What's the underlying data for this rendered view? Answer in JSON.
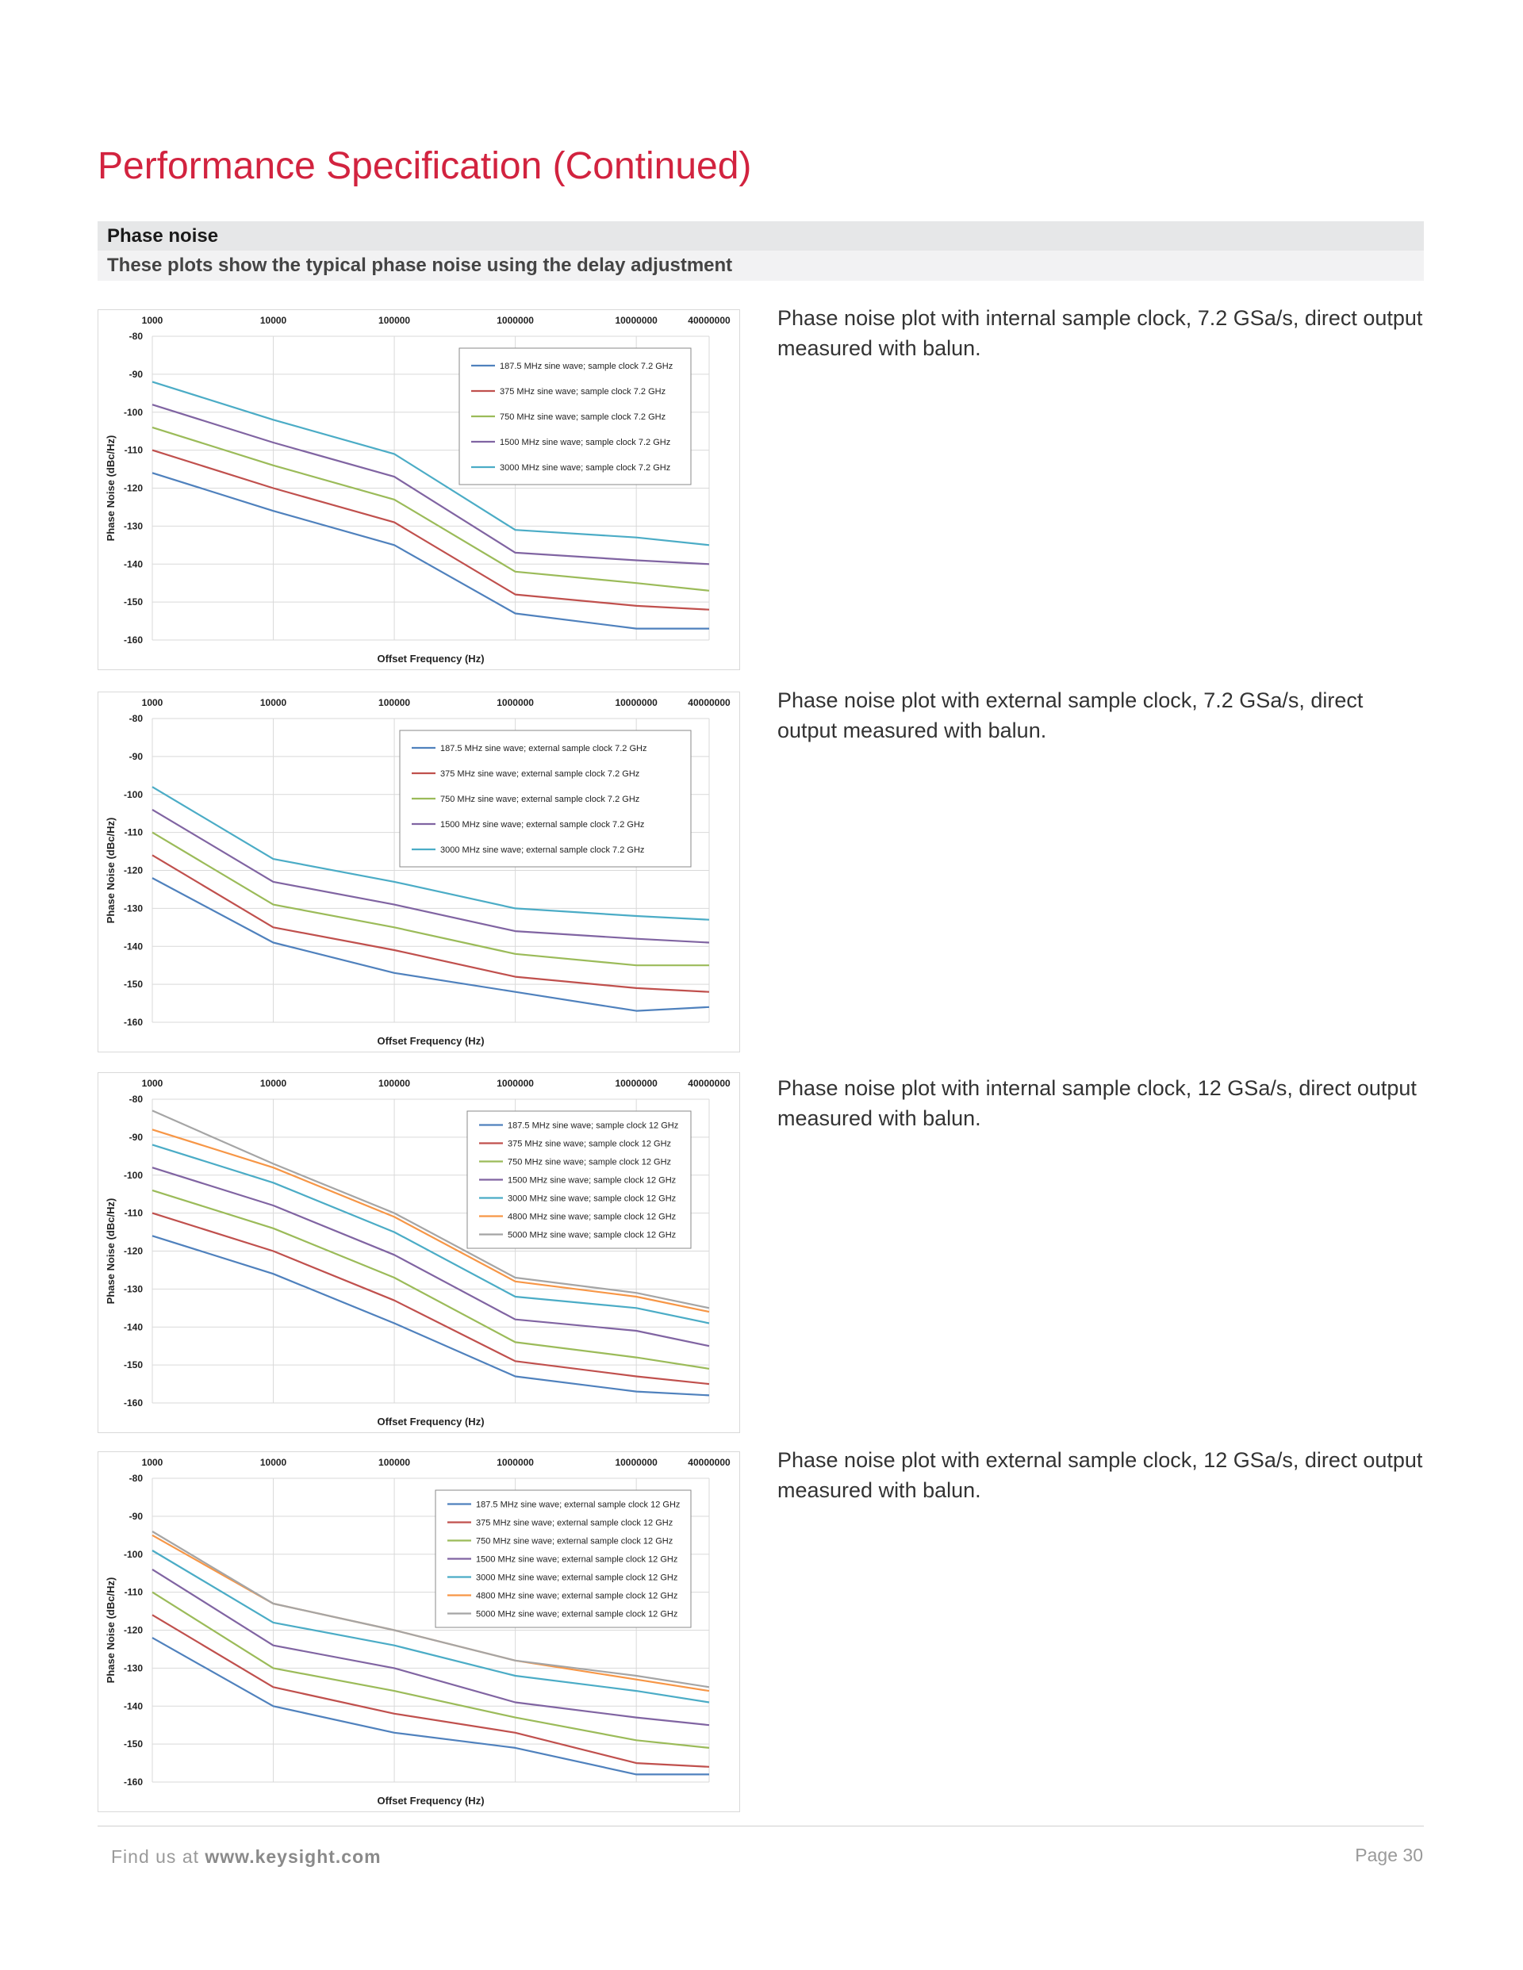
{
  "page": {
    "title": "Performance Specification (Continued)",
    "section_title": "Phase noise",
    "section_subtitle": "These plots show the typical phase noise using the delay adjustment"
  },
  "captions": [
    "Phase noise plot with internal sample clock, 7.2 GSa/s, direct output measured with balun.",
    "Phase noise plot with external sample clock, 7.2 GSa/s, direct output measured with balun.",
    "Phase noise plot with internal sample clock, 12 GSa/s, direct output measured with balun.",
    "Phase noise plot with external sample clock, 12 GSa/s, direct output measured with balun."
  ],
  "footer": {
    "prefix": "Find us at ",
    "url": "www.keysight.com",
    "page": "Page 30"
  },
  "chart_data": [
    {
      "type": "line",
      "x_scale": "log",
      "x": [
        1000,
        10000,
        100000,
        1000000,
        10000000,
        40000000
      ],
      "x_tick_labels": [
        "1000",
        "10000",
        "100000",
        "1000000",
        "10000000",
        "40000000"
      ],
      "ylim": [
        -160,
        -80
      ],
      "y_ticks": [
        -80,
        -90,
        -100,
        -110,
        -120,
        -130,
        -140,
        -150,
        -160
      ],
      "xlabel": "Offset Frequency (Hz)",
      "ylabel": "Phase Noise (dBc/Hz)",
      "grid": true,
      "legend_position": "top-right",
      "series": [
        {
          "name": "187.5 MHz sine wave; sample clock 7.2 GHz",
          "color": "#4f81bd",
          "values": [
            -116,
            -126,
            -135,
            -153,
            -157,
            -157
          ]
        },
        {
          "name": "375 MHz sine wave; sample clock 7.2 GHz",
          "color": "#c0504d",
          "values": [
            -110,
            -120,
            -129,
            -148,
            -151,
            -152
          ]
        },
        {
          "name": "750 MHz sine wave; sample clock 7.2 GHz",
          "color": "#9bbb59",
          "values": [
            -104,
            -114,
            -123,
            -142,
            -145,
            -147
          ]
        },
        {
          "name": "1500 MHz sine wave; sample clock 7.2 GHz",
          "color": "#8064a2",
          "values": [
            -98,
            -108,
            -117,
            -137,
            -139,
            -140
          ]
        },
        {
          "name": "3000 MHz sine wave; sample clock 7.2 GHz",
          "color": "#4bacc6",
          "values": [
            -92,
            -102,
            -111,
            -131,
            -133,
            -135
          ]
        }
      ]
    },
    {
      "type": "line",
      "x_scale": "log",
      "x": [
        1000,
        10000,
        100000,
        1000000,
        10000000,
        40000000
      ],
      "x_tick_labels": [
        "1000",
        "10000",
        "100000",
        "1000000",
        "10000000",
        "40000000"
      ],
      "ylim": [
        -160,
        -80
      ],
      "y_ticks": [
        -80,
        -90,
        -100,
        -110,
        -120,
        -130,
        -140,
        -150,
        -160
      ],
      "xlabel": "Offset Frequency (Hz)",
      "ylabel": "Phase Noise (dBc/Hz)",
      "grid": true,
      "legend_position": "top-right",
      "series": [
        {
          "name": "187.5 MHz sine wave; external sample clock 7.2 GHz",
          "color": "#4f81bd",
          "values": [
            -122,
            -139,
            -147,
            -152,
            -157,
            -156
          ]
        },
        {
          "name": "375 MHz sine wave; external sample clock 7.2 GHz",
          "color": "#c0504d",
          "values": [
            -116,
            -135,
            -141,
            -148,
            -151,
            -152
          ]
        },
        {
          "name": "750 MHz sine wave; external sample clock 7.2 GHz",
          "color": "#9bbb59",
          "values": [
            -110,
            -129,
            -135,
            -142,
            -145,
            -145
          ]
        },
        {
          "name": "1500 MHz sine wave; external sample clock 7.2 GHz",
          "color": "#8064a2",
          "values": [
            -104,
            -123,
            -129,
            -136,
            -138,
            -139
          ]
        },
        {
          "name": "3000 MHz sine wave; external sample clock 7.2 GHz",
          "color": "#4bacc6",
          "values": [
            -98,
            -117,
            -123,
            -130,
            -132,
            -133
          ]
        }
      ]
    },
    {
      "type": "line",
      "x_scale": "log",
      "x": [
        1000,
        10000,
        100000,
        1000000,
        10000000,
        40000000
      ],
      "x_tick_labels": [
        "1000",
        "10000",
        "100000",
        "1000000",
        "10000000",
        "40000000"
      ],
      "ylim": [
        -160,
        -80
      ],
      "y_ticks": [
        -80,
        -90,
        -100,
        -110,
        -120,
        -130,
        -140,
        -150,
        -160
      ],
      "xlabel": "Offset Frequency (Hz)",
      "ylabel": "Phase Noise (dBc/Hz)",
      "grid": true,
      "legend_position": "top-right",
      "series": [
        {
          "name": "187.5 MHz sine wave; sample clock 12 GHz",
          "color": "#4f81bd",
          "values": [
            -116,
            -126,
            -139,
            -153,
            -157,
            -158
          ]
        },
        {
          "name": "375 MHz sine wave; sample clock 12 GHz",
          "color": "#c0504d",
          "values": [
            -110,
            -120,
            -133,
            -149,
            -153,
            -155
          ]
        },
        {
          "name": "750 MHz sine wave; sample clock 12 GHz",
          "color": "#9bbb59",
          "values": [
            -104,
            -114,
            -127,
            -144,
            -148,
            -151
          ]
        },
        {
          "name": "1500 MHz sine wave; sample clock 12 GHz",
          "color": "#8064a2",
          "values": [
            -98,
            -108,
            -121,
            -138,
            -141,
            -145
          ]
        },
        {
          "name": "3000 MHz sine wave; sample clock 12 GHz",
          "color": "#4bacc6",
          "values": [
            -92,
            -102,
            -115,
            -132,
            -135,
            -139
          ]
        },
        {
          "name": "4800 MHz sine wave; sample clock 12 GHz",
          "color": "#f79646",
          "values": [
            -88,
            -98,
            -111,
            -128,
            -132,
            -136
          ]
        },
        {
          "name": "5000 MHz sine wave; sample clock 12 GHz",
          "color": "#a5a5a5",
          "values": [
            -83,
            -97,
            -110,
            -127,
            -131,
            -135
          ]
        }
      ]
    },
    {
      "type": "line",
      "x_scale": "log",
      "x": [
        1000,
        10000,
        100000,
        1000000,
        10000000,
        40000000
      ],
      "x_tick_labels": [
        "1000",
        "10000",
        "100000",
        "1000000",
        "10000000",
        "40000000"
      ],
      "ylim": [
        -160,
        -80
      ],
      "y_ticks": [
        -80,
        -90,
        -100,
        -110,
        -120,
        -130,
        -140,
        -150,
        -160
      ],
      "xlabel": "Offset Frequency (Hz)",
      "ylabel": "Phase Noise (dBc/Hz)",
      "grid": true,
      "legend_position": "top-right",
      "series": [
        {
          "name": "187.5 MHz sine wave; external sample clock 12 GHz",
          "color": "#4f81bd",
          "values": [
            -122,
            -140,
            -147,
            -151,
            -158,
            -158
          ]
        },
        {
          "name": "375 MHz sine wave; external sample clock 12 GHz",
          "color": "#c0504d",
          "values": [
            -116,
            -135,
            -142,
            -147,
            -155,
            -156
          ]
        },
        {
          "name": "750 MHz sine wave; external sample clock 12 GHz",
          "color": "#9bbb59",
          "values": [
            -110,
            -130,
            -136,
            -143,
            -149,
            -151
          ]
        },
        {
          "name": "1500 MHz sine wave; external sample clock 12 GHz",
          "color": "#8064a2",
          "values": [
            -104,
            -124,
            -130,
            -139,
            -143,
            -145
          ]
        },
        {
          "name": "3000 MHz sine wave; external sample clock 12 GHz",
          "color": "#4bacc6",
          "values": [
            -99,
            -118,
            -124,
            -132,
            -136,
            -139
          ]
        },
        {
          "name": "4800 MHz sine wave; external sample clock 12 GHz",
          "color": "#f79646",
          "values": [
            -95,
            -113,
            -120,
            -128,
            -133,
            -136
          ]
        },
        {
          "name": "5000 MHz sine wave; external sample clock 12 GHz",
          "color": "#a5a5a5",
          "values": [
            -94,
            -113,
            -120,
            -128,
            -132,
            -135
          ]
        }
      ]
    }
  ]
}
